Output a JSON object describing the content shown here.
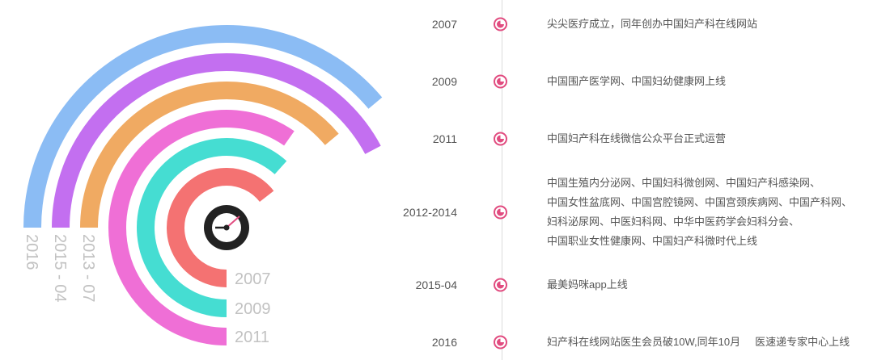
{
  "arcs": [
    {
      "label": "2016",
      "color": "#8bbcf4",
      "radius": 240,
      "end_angle": 40
    },
    {
      "label": "2015 - 04",
      "color": "#c36ff0",
      "radius": 205,
      "end_angle": 28
    },
    {
      "label": "2013 - 07",
      "color": "#f0aa62",
      "radius": 170,
      "end_angle": 40
    },
    {
      "label": "2011",
      "color": "#ef6fd6",
      "radius": 135,
      "end_angle": 55
    },
    {
      "label": "2009",
      "color": "#45ddd2",
      "radius": 100,
      "end_angle": 48
    },
    {
      "label": "2007",
      "color": "#f47272",
      "radius": 63,
      "end_angle": 38
    }
  ],
  "center_icon": "clock-icon",
  "timeline": [
    {
      "year": "2007",
      "lines": [
        "尖尖医疗成立，同年创办中国妇产科在线网站"
      ]
    },
    {
      "year": "2009",
      "lines": [
        "中国围产医学网、中国妇幼健康网上线"
      ]
    },
    {
      "year": "2011",
      "lines": [
        "中国妇产科在线微信公众平台正式运营"
      ]
    },
    {
      "year": "2012-2014",
      "lines": [
        "中国生殖内分泌网、中国妇科微创网、中国妇产科感染网、",
        "中国女性盆底网、中国宫腔镜网、中国宫颈疾病网、中国产科网、",
        "妇科泌尿网、中医妇科网、中华中医药学会妇科分会、",
        "中国职业女性健康网、中国妇产科微时代上线"
      ]
    },
    {
      "year": "2015-04",
      "lines": [
        "最美妈咪app上线"
      ]
    },
    {
      "year": "2016",
      "lines": [
        "妇产科在线网站医生会员破10W,同年10月     医速递专家中心上线"
      ]
    }
  ],
  "timeline_icon": "clock-icon",
  "accent_color": "#e14b7f"
}
